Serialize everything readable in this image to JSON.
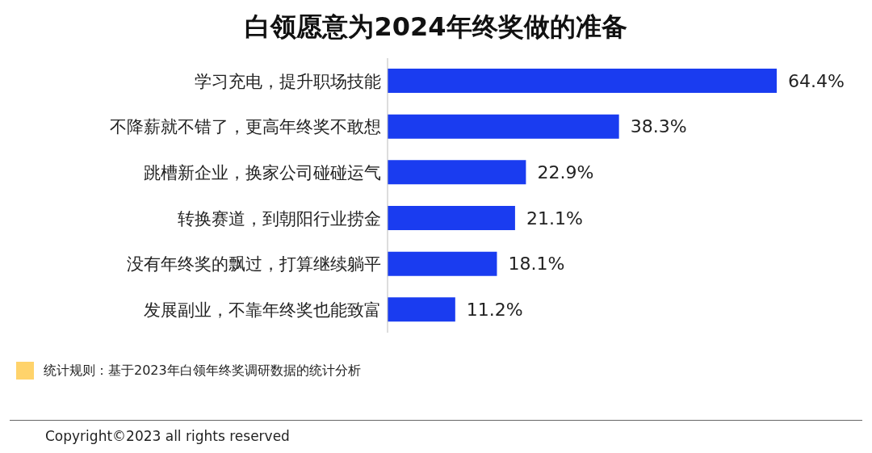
{
  "chart_data": {
    "type": "bar",
    "orientation": "horizontal",
    "title": "白领愿意为2024年终奖做的准备",
    "categories": [
      "学习充电，提升职场技能",
      "不降薪就不错了，更高年终奖不敢想",
      "跳槽新企业，换家公司碰碰运气",
      "转换赛道，到朝阳行业捞金",
      "没有年终奖的飘过，打算继续躺平",
      "发展副业，不靠年终奖也能致富"
    ],
    "values": [
      64.4,
      38.3,
      22.9,
      21.1,
      18.1,
      11.2
    ],
    "value_labels": [
      "64.4%",
      "38.3%",
      "22.9%",
      "21.1%",
      "18.1%",
      "11.2%"
    ],
    "color": "#1a3cf0",
    "annotations": [
      "统计规则：基于2023年白领年终奖调研数据的统计分析",
      "Copyright©2023 all rights reserved"
    ]
  }
}
